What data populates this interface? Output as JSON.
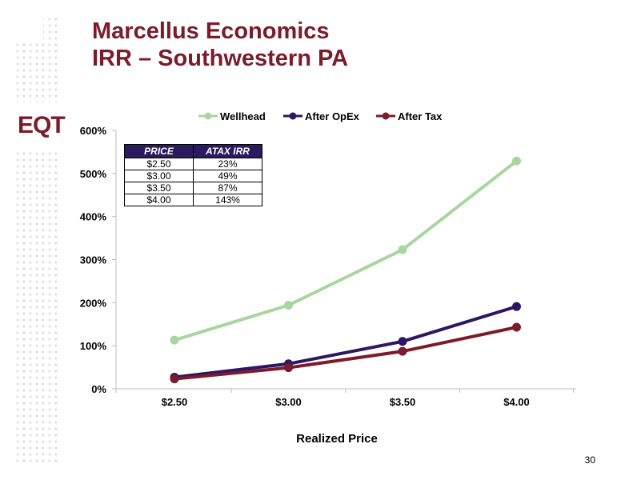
{
  "title": {
    "line1": "Marcellus Economics",
    "line2": "IRR – Southwestern PA"
  },
  "logo": {
    "text": "EQT"
  },
  "page_number": "30",
  "colors": {
    "title": "#7b1b2b",
    "wellhead": "#a8d5a0",
    "after_opex": "#2d1663",
    "after_tax": "#7b1b2b",
    "table_header": "#2a1a5e"
  },
  "irr_table": {
    "headers": [
      "PRICE",
      "ATAX IRR"
    ],
    "rows": [
      [
        "$2.50",
        "23%"
      ],
      [
        "$3.00",
        "49%"
      ],
      [
        "$3.50",
        "87%"
      ],
      [
        "$4.00",
        "143%"
      ]
    ]
  },
  "chart_data": {
    "type": "line",
    "xlabel": "Realized Price",
    "ylabel": "",
    "categories": [
      "$2.50",
      "$3.00",
      "$3.50",
      "$4.00"
    ],
    "y_ticks": [
      "0%",
      "100%",
      "200%",
      "300%",
      "400%",
      "500%",
      "600%"
    ],
    "ylim": [
      0,
      600
    ],
    "grid": false,
    "legend_position": "top",
    "series": [
      {
        "name": "Wellhead",
        "values": [
          113,
          194,
          323,
          529
        ]
      },
      {
        "name": "After OpEx",
        "values": [
          27,
          58,
          110,
          191
        ]
      },
      {
        "name": "After Tax",
        "values": [
          23,
          49,
          87,
          143
        ]
      }
    ]
  }
}
